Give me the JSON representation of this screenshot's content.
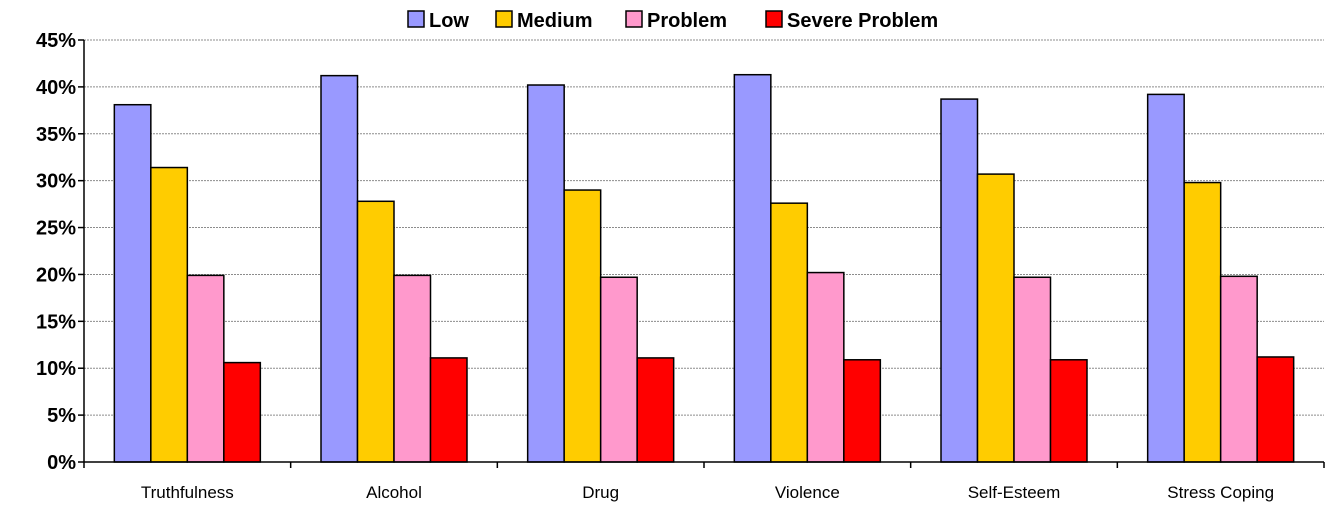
{
  "chart_data": {
    "type": "bar",
    "categories": [
      "Truthfulness",
      "Alcohol",
      "Drug",
      "Violence",
      "Self-Esteem",
      "Stress Coping"
    ],
    "series": [
      {
        "name": "Low",
        "color": "#9999ff",
        "values": [
          38.1,
          41.2,
          40.2,
          41.3,
          38.7,
          39.2
        ]
      },
      {
        "name": "Medium",
        "color": "#ffcc00",
        "values": [
          31.4,
          27.8,
          29.0,
          27.6,
          30.7,
          29.8
        ]
      },
      {
        "name": "Problem",
        "color": "#ff99cc",
        "values": [
          19.9,
          19.9,
          19.7,
          20.2,
          19.7,
          19.8
        ]
      },
      {
        "name": "Severe Problem",
        "color": "#ff0000",
        "values": [
          10.6,
          11.1,
          11.1,
          10.9,
          10.9,
          11.2
        ]
      }
    ],
    "yticks": [
      "0%",
      "5%",
      "10%",
      "15%",
      "20%",
      "25%",
      "30%",
      "35%",
      "40%",
      "45%"
    ],
    "ylim": [
      0,
      45
    ],
    "grid": true,
    "legend": "top"
  }
}
